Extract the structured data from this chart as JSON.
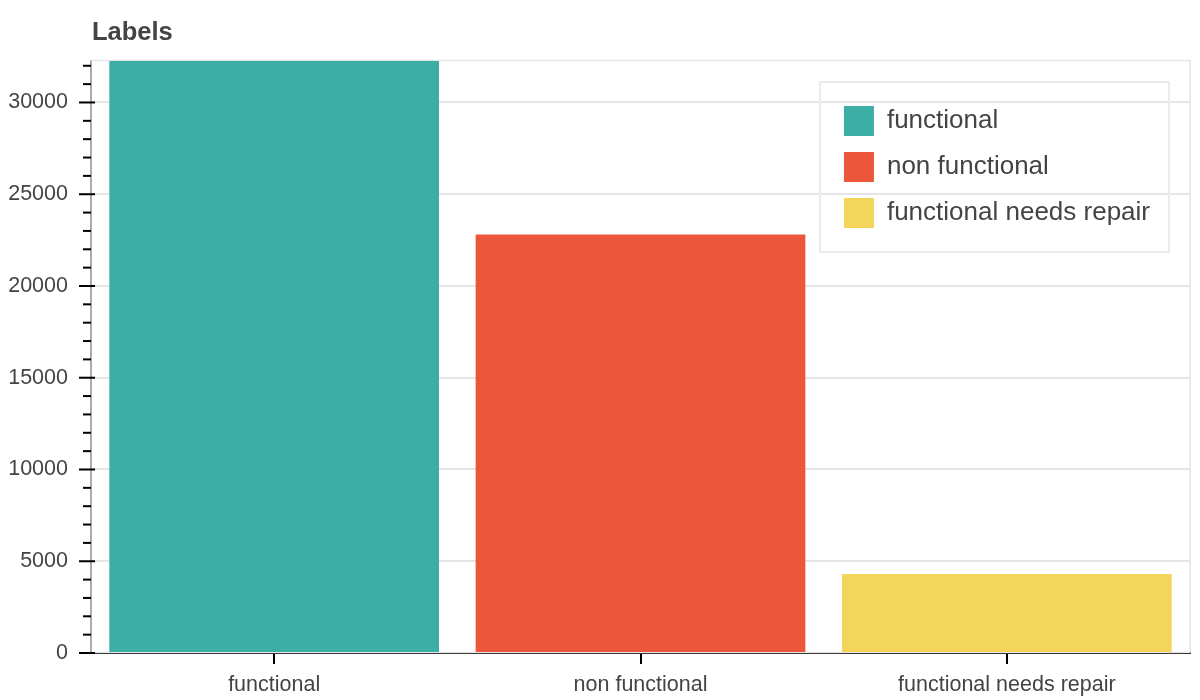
{
  "chart_data": {
    "type": "bar",
    "title": "Labels",
    "categories": [
      "functional",
      "non functional",
      "functional needs repair"
    ],
    "series": [
      {
        "name": "functional",
        "color": "#3daea5",
        "values": [
          32260,
          null,
          null
        ]
      },
      {
        "name": "non functional",
        "color": "#ec563b",
        "values": [
          null,
          22800,
          null
        ]
      },
      {
        "name": "functional needs repair",
        "color": "#f4d55c",
        "values": [
          null,
          null,
          4300
        ]
      }
    ],
    "ylim": [
      0,
      32260
    ],
    "yticks": [
      0,
      {
        "value": 1000,
        "label": null
      },
      {
        "value": 2000,
        "label": null
      },
      {
        "value": 3000,
        "label": null
      },
      {
        "value": 4000,
        "label": null
      },
      5000,
      {
        "value": 6000,
        "label": null
      },
      {
        "value": 7000,
        "label": null
      },
      {
        "value": 8000,
        "label": null
      },
      {
        "value": 9000,
        "label": null
      },
      10000,
      {
        "value": 11000,
        "label": null
      },
      {
        "value": 12000,
        "label": null
      },
      {
        "value": 13000,
        "label": null
      },
      {
        "value": 14000,
        "label": null
      },
      15000,
      {
        "value": 16000,
        "label": null
      },
      {
        "value": 17000,
        "label": null
      },
      {
        "value": 18000,
        "label": null
      },
      {
        "value": 19000,
        "label": null
      },
      20000,
      {
        "value": 21000,
        "label": null
      },
      {
        "value": 22000,
        "label": null
      },
      {
        "value": 23000,
        "label": null
      },
      {
        "value": 24000,
        "label": null
      },
      25000,
      {
        "value": 26000,
        "label": null
      },
      {
        "value": 27000,
        "label": null
      },
      {
        "value": 28000,
        "label": null
      },
      {
        "value": 29000,
        "label": null
      },
      30000,
      {
        "value": 31000,
        "label": null
      },
      {
        "value": 32000,
        "label": null
      }
    ],
    "grid": "y",
    "legend": "top right"
  }
}
